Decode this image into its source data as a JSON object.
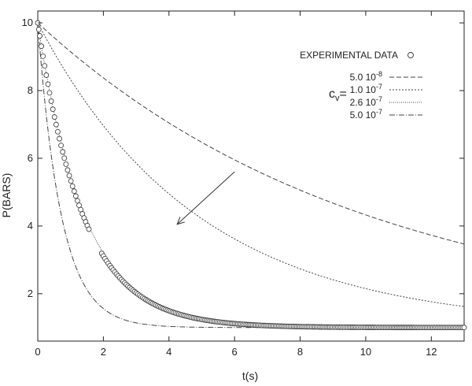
{
  "chart_data": {
    "type": "line",
    "xlabel": "t(s)",
    "ylabel": "P(BARS)",
    "xlim": [
      0,
      13
    ],
    "ylim": [
      0.6,
      10.35
    ],
    "xticks": [
      0,
      2,
      4,
      6,
      8,
      10,
      12
    ],
    "yticks": [
      2,
      4,
      6,
      8,
      10
    ],
    "grid": false,
    "legend_position": "top-right",
    "legend_group_label": {
      "main": "c",
      "sub": "v",
      "suffix": "="
    },
    "scatter_series": {
      "name": "EXPERIMENTAL DATA",
      "marker": "open-circle",
      "segments": [
        {
          "x_start": 0.0,
          "x_end": 0.06,
          "step": 0.03,
          "tau": 1.38,
          "floor": 1.0,
          "p0": 10.0
        },
        {
          "x_start": 0.06,
          "x_end": 1.56,
          "step": 0.05,
          "tau": 1.38,
          "floor": 1.0,
          "p0": 10.0
        },
        {
          "x_start": 1.95,
          "x_end": 13.0,
          "step": 0.05,
          "tau": 1.38,
          "floor": 1.0,
          "p0": 10.0
        }
      ]
    },
    "series": [
      {
        "name_base": "5.0 10",
        "name_exp": "-8",
        "dash": "6,3",
        "p0": 10.0,
        "floor": 1.0,
        "tau": 10.05
      },
      {
        "name_base": "1.0 10",
        "name_exp": "-7",
        "dash": "2,2",
        "p0": 10.0,
        "floor": 1.0,
        "tau": 4.86
      },
      {
        "name_base": "2.6 10",
        "name_exp": "-7",
        "dash": "1,1.5",
        "p0": 10.0,
        "floor": 1.0,
        "tau": 1.42
      },
      {
        "name_base": "5.0 10",
        "name_exp": "-7",
        "dash": "7,2,1,2",
        "p0": 10.0,
        "floor": 1.0,
        "tau": 0.72
      }
    ],
    "annotation": {
      "type": "arrow",
      "from": [
        6.0,
        5.6
      ],
      "to": [
        4.25,
        4.05
      ]
    }
  }
}
